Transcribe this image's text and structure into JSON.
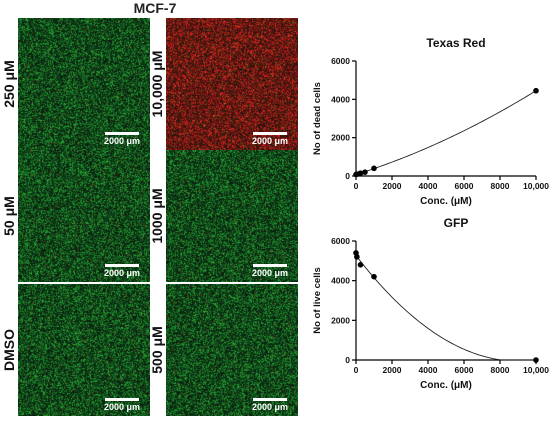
{
  "figure_title": "MCF-7",
  "scale_label": "2000 μm",
  "panels": [
    {
      "label": "250 μM",
      "tint": "green"
    },
    {
      "label": "10,000 μM",
      "tint": "red"
    },
    {
      "label": "50 μM",
      "tint": "green"
    },
    {
      "label": "1000 μM",
      "tint": "green"
    },
    {
      "label": "DMSO",
      "tint": "green"
    },
    {
      "label": "500 μM",
      "tint": "green"
    }
  ],
  "colors": {
    "green": "#2e8b3a",
    "red": "#c0392b",
    "axis": "#000000"
  },
  "chart_data": [
    {
      "type": "scatter",
      "title": "Texas Red",
      "xlabel": "Conc. (μM)",
      "ylabel": "No of dead cells",
      "xlim": [
        0,
        10000
      ],
      "ylim": [
        0,
        6000
      ],
      "x_ticks": [
        0,
        2000,
        4000,
        6000,
        8000,
        10000
      ],
      "x_tick_labels": [
        "0",
        "2000",
        "4000",
        "6000",
        "8000",
        "10,000"
      ],
      "y_ticks": [
        0,
        2000,
        4000,
        6000
      ],
      "y_tick_labels": [
        "0",
        "2000",
        "4000",
        "6000"
      ],
      "points": [
        {
          "x": 0,
          "y": 80
        },
        {
          "x": 50,
          "y": 100
        },
        {
          "x": 250,
          "y": 150
        },
        {
          "x": 500,
          "y": 200
        },
        {
          "x": 1000,
          "y": 400
        },
        {
          "x": 10000,
          "y": 4450
        }
      ],
      "fit_curve": true
    },
    {
      "type": "scatter",
      "title": "GFP",
      "xlabel": "Conc. (μM)",
      "ylabel": "No of live cells",
      "xlim": [
        0,
        10000
      ],
      "ylim": [
        0,
        6000
      ],
      "x_ticks": [
        0,
        2000,
        4000,
        6000,
        8000,
        10000
      ],
      "x_tick_labels": [
        "0",
        "2000",
        "4000",
        "6000",
        "8000",
        "10,000"
      ],
      "y_ticks": [
        0,
        2000,
        4000,
        6000
      ],
      "y_tick_labels": [
        "0",
        "2000",
        "4000",
        "6000"
      ],
      "points": [
        {
          "x": 0,
          "y": 5400
        },
        {
          "x": 50,
          "y": 5200
        },
        {
          "x": 250,
          "y": 4800
        },
        {
          "x": 1000,
          "y": 4200
        },
        {
          "x": 10000,
          "y": 0
        }
      ],
      "fit_curve": true
    }
  ]
}
